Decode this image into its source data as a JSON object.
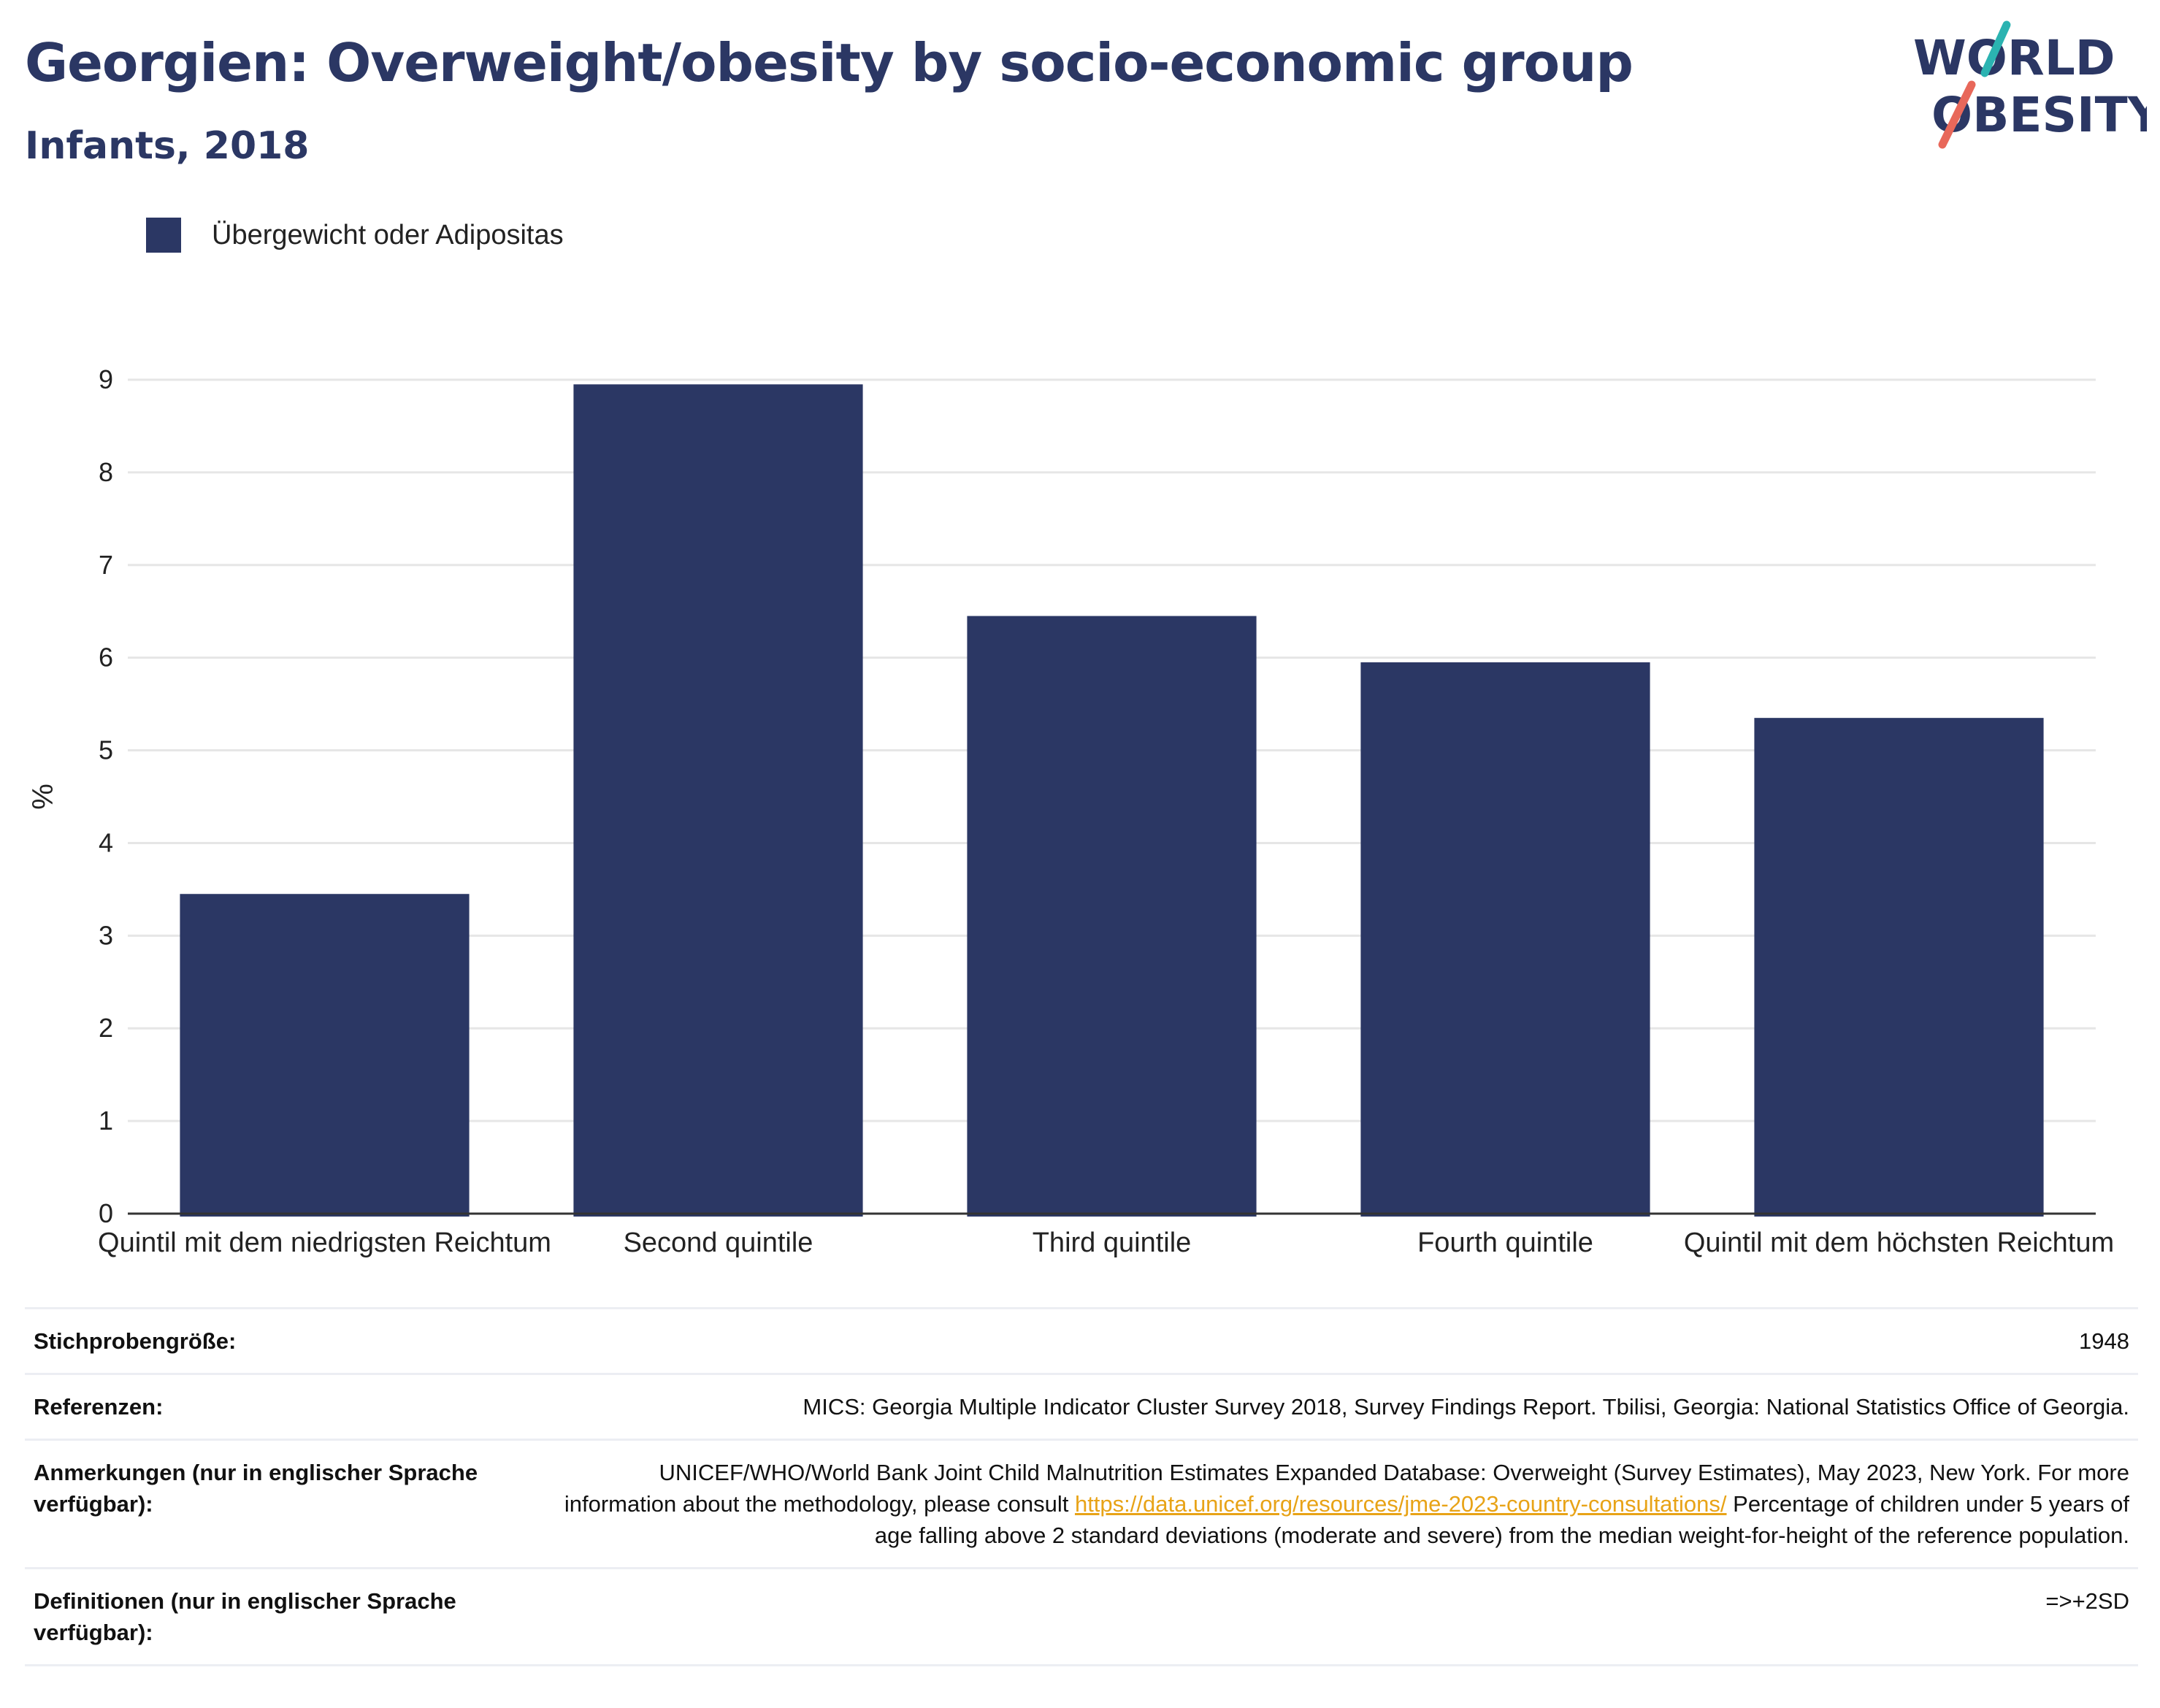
{
  "header": {
    "title": "Georgien: Overweight/obesity by socio-economic group",
    "subtitle": "Infants, 2018"
  },
  "logo": {
    "line1": "WORLD",
    "line2": "OBESITY",
    "colors": [
      "#2b3764",
      "#2bb3b1",
      "#e8685a"
    ]
  },
  "colors": {
    "bar": "#2b3764",
    "grid": "#e6e6e6",
    "link": "#e8a317"
  },
  "chart_data": {
    "type": "bar",
    "categories": [
      "Quintil mit dem niedrigsten Reichtum",
      "Second quintile",
      "Third quintile",
      "Fourth quintile",
      "Quintil mit dem höchsten Reichtum"
    ],
    "series": [
      {
        "name": "Übergewicht oder Adipositas",
        "values": [
          3.45,
          8.95,
          6.45,
          5.95,
          5.35
        ]
      }
    ],
    "ylabel": "%",
    "ylim": [
      0,
      9
    ],
    "yticks": [
      0,
      1,
      2,
      3,
      4,
      5,
      6,
      7,
      8,
      9
    ],
    "grid": true,
    "legend": "top-left"
  },
  "meta": {
    "sample_label": "Stichprobengröße:",
    "sample_value": "1948",
    "refs_label": "Referenzen:",
    "refs_value": "MICS: Georgia Multiple Indicator Cluster Survey 2018, Survey Findings Report. Tbilisi, Georgia: National Statistics Office of Georgia.",
    "notes_label": "Anmerkungen (nur in englischer Sprache verfügbar):",
    "notes_value_1": "UNICEF/WHO/World Bank Joint Child Malnutrition Estimates Expanded Database: Overweight (Survey Estimates), May 2023, New York. For more information about the methodology, please consult",
    "notes_link": "https://data.unicef.org/resources/jme-2023-country-consultations/",
    "notes_value_2": "Percentage of children under 5 years of age falling above 2 standard deviations (moderate and severe) from the median weight-for-height of the reference population.",
    "defs_label": "Definitionen (nur in englischer Sprache verfügbar):",
    "defs_value": "=>+2SD"
  }
}
